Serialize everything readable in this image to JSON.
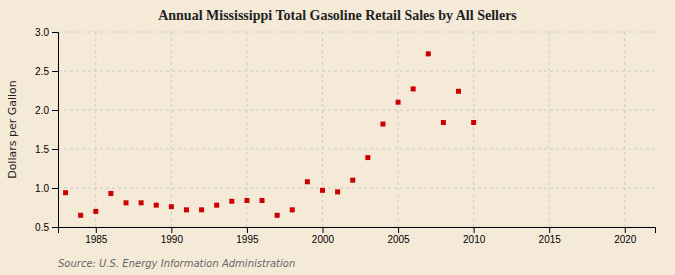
{
  "chart_data": {
    "type": "scatter",
    "title": "Annual Mississippi Total Gasoline Retail Sales by All Sellers",
    "ylabel": "Dollars per Gallon",
    "source": "Source: U.S. Energy Information Administration",
    "x": [
      1983,
      1984,
      1985,
      1986,
      1987,
      1988,
      1989,
      1990,
      1991,
      1992,
      1993,
      1994,
      1995,
      1996,
      1997,
      1998,
      1999,
      2000,
      2001,
      2002,
      2003,
      2004,
      2005,
      2006,
      2007,
      2008,
      2009,
      2010
    ],
    "values": [
      0.94,
      0.65,
      0.7,
      0.93,
      0.81,
      0.81,
      0.78,
      0.76,
      0.72,
      0.72,
      0.78,
      0.83,
      0.84,
      0.84,
      0.65,
      0.72,
      1.08,
      0.97,
      0.95,
      1.1,
      1.39,
      1.82,
      2.1,
      2.27,
      2.72,
      1.84,
      2.24,
      1.84
    ],
    "color": "#cc0000",
    "marker": "square",
    "xlim": [
      1982.5,
      2022
    ],
    "ylim": [
      0.5,
      3.0
    ],
    "xticks": [
      1985,
      1990,
      1995,
      2000,
      2005,
      2010,
      2015,
      2020
    ],
    "yticks": [
      0.5,
      {
        "value": 1.0,
        "label": "1.0"
      },
      1.5,
      {
        "value": 2.0,
        "label": "2.0"
      },
      2.5,
      {
        "value": 3.0,
        "label": "3.0"
      }
    ],
    "grid": true
  }
}
